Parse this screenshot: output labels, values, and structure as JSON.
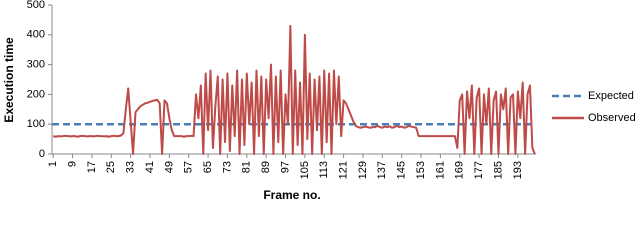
{
  "chart_data": {
    "type": "line",
    "xlabel": "Frame no.",
    "ylabel": "Execution time",
    "x": [
      1,
      2,
      3,
      4,
      5,
      6,
      7,
      8,
      9,
      10,
      11,
      12,
      13,
      14,
      15,
      16,
      17,
      18,
      19,
      20,
      21,
      22,
      23,
      24,
      25,
      26,
      27,
      28,
      29,
      30,
      31,
      32,
      33,
      34,
      35,
      36,
      37,
      38,
      39,
      40,
      41,
      42,
      43,
      44,
      45,
      46,
      47,
      48,
      49,
      50,
      51,
      52,
      53,
      54,
      55,
      56,
      57,
      58,
      59,
      60,
      61,
      62,
      63,
      64,
      65,
      66,
      67,
      68,
      69,
      70,
      71,
      72,
      73,
      74,
      75,
      76,
      77,
      78,
      79,
      80,
      81,
      82,
      83,
      84,
      85,
      86,
      87,
      88,
      89,
      90,
      91,
      92,
      93,
      94,
      95,
      96,
      97,
      98,
      99,
      100,
      101,
      102,
      103,
      104,
      105,
      106,
      107,
      108,
      109,
      110,
      111,
      112,
      113,
      114,
      115,
      116,
      117,
      118,
      119,
      120,
      121,
      122,
      123,
      124,
      125,
      126,
      127,
      128,
      129,
      130,
      131,
      132,
      133,
      134,
      135,
      136,
      137,
      138,
      139,
      140,
      141,
      142,
      143,
      144,
      145,
      146,
      147,
      148,
      149,
      150,
      151,
      152,
      153,
      154,
      155,
      156,
      157,
      158,
      159,
      160,
      161,
      162,
      163,
      164,
      165,
      166,
      167,
      168,
      169,
      170,
      171,
      172,
      173,
      174,
      175,
      176,
      177,
      178,
      179,
      180,
      181,
      182,
      183,
      184,
      185,
      186,
      187,
      188,
      189,
      190,
      191,
      192,
      193,
      194,
      195,
      196,
      197,
      198,
      199,
      200
    ],
    "reference_line": {
      "name": "Expected",
      "value": 100,
      "color": "#4a7ebb"
    },
    "series": [
      {
        "name": "Observed",
        "color": "#be4b48",
        "values": [
          60,
          58,
          60,
          59,
          60,
          61,
          60,
          59,
          60,
          60,
          58,
          60,
          61,
          60,
          59,
          60,
          60,
          59,
          61,
          60,
          60,
          59,
          60,
          58,
          60,
          61,
          60,
          60,
          62,
          70,
          150,
          220,
          110,
          0,
          140,
          150,
          160,
          165,
          170,
          172,
          175,
          178,
          180,
          182,
          170,
          0,
          180,
          170,
          120,
          80,
          60,
          60,
          60,
          60,
          58,
          60,
          60,
          61,
          60,
          200,
          120,
          230,
          0,
          270,
          80,
          280,
          20,
          160,
          260,
          0,
          250,
          40,
          270,
          10,
          230,
          60,
          280,
          0,
          250,
          30,
          270,
          100,
          240,
          0,
          280,
          60,
          260,
          0,
          250,
          120,
          300,
          0,
          260,
          40,
          280,
          0,
          200,
          100,
          430,
          0,
          280,
          30,
          240,
          0,
          400,
          50,
          270,
          0,
          250,
          80,
          260,
          0,
          280,
          40,
          270,
          0,
          280,
          100,
          260,
          60,
          180,
          170,
          150,
          130,
          110,
          95,
          90,
          88,
          90,
          92,
          90,
          88,
          90,
          90,
          95,
          90,
          88,
          92,
          90,
          93,
          88,
          90,
          95,
          90,
          92,
          88,
          90,
          95,
          92,
          90,
          88,
          60,
          60,
          60,
          60,
          60,
          60,
          60,
          60,
          60,
          60,
          60,
          60,
          60,
          60,
          60,
          60,
          20,
          180,
          200,
          0,
          210,
          120,
          230,
          0,
          190,
          220,
          0,
          200,
          100,
          220,
          0,
          180,
          210,
          0,
          200,
          150,
          220,
          0,
          190,
          200,
          0,
          210,
          120,
          240,
          0,
          200,
          230,
          20,
          0
        ]
      }
    ],
    "xlim": [
      0.5,
      200.5
    ],
    "xticks": [
      1,
      9,
      17,
      25,
      33,
      41,
      49,
      57,
      65,
      73,
      81,
      89,
      97,
      105,
      113,
      121,
      129,
      137,
      145,
      153,
      161,
      169,
      177,
      185,
      193
    ],
    "ylim": [
      0,
      500
    ],
    "yticks": [
      0,
      100,
      200,
      300,
      400,
      500
    ],
    "legend": "right"
  }
}
